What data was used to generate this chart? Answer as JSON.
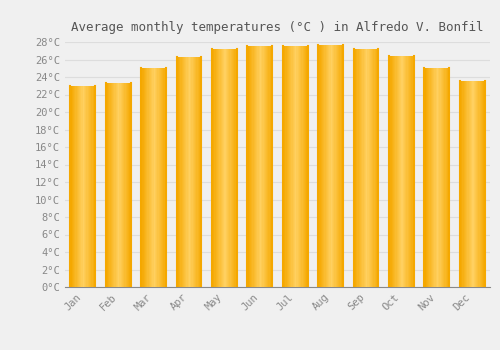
{
  "title": "Average monthly temperatures (°C ) in Alfredo V. Bonfil",
  "months": [
    "Jan",
    "Feb",
    "Mar",
    "Apr",
    "May",
    "Jun",
    "Jul",
    "Aug",
    "Sep",
    "Oct",
    "Nov",
    "Dec"
  ],
  "values": [
    23.0,
    23.3,
    25.0,
    26.3,
    27.2,
    27.5,
    27.6,
    27.7,
    27.2,
    26.4,
    25.0,
    23.5
  ],
  "bar_color_left": "#F5A800",
  "bar_color_center": "#FFD060",
  "bar_color_right": "#F5A800",
  "ylim_min": 0,
  "ylim_max": 28,
  "ytick_step": 2,
  "background_color": "#F0F0F0",
  "grid_color": "#DDDDDD",
  "title_fontsize": 9,
  "tick_fontsize": 7.5,
  "font_family": "monospace"
}
